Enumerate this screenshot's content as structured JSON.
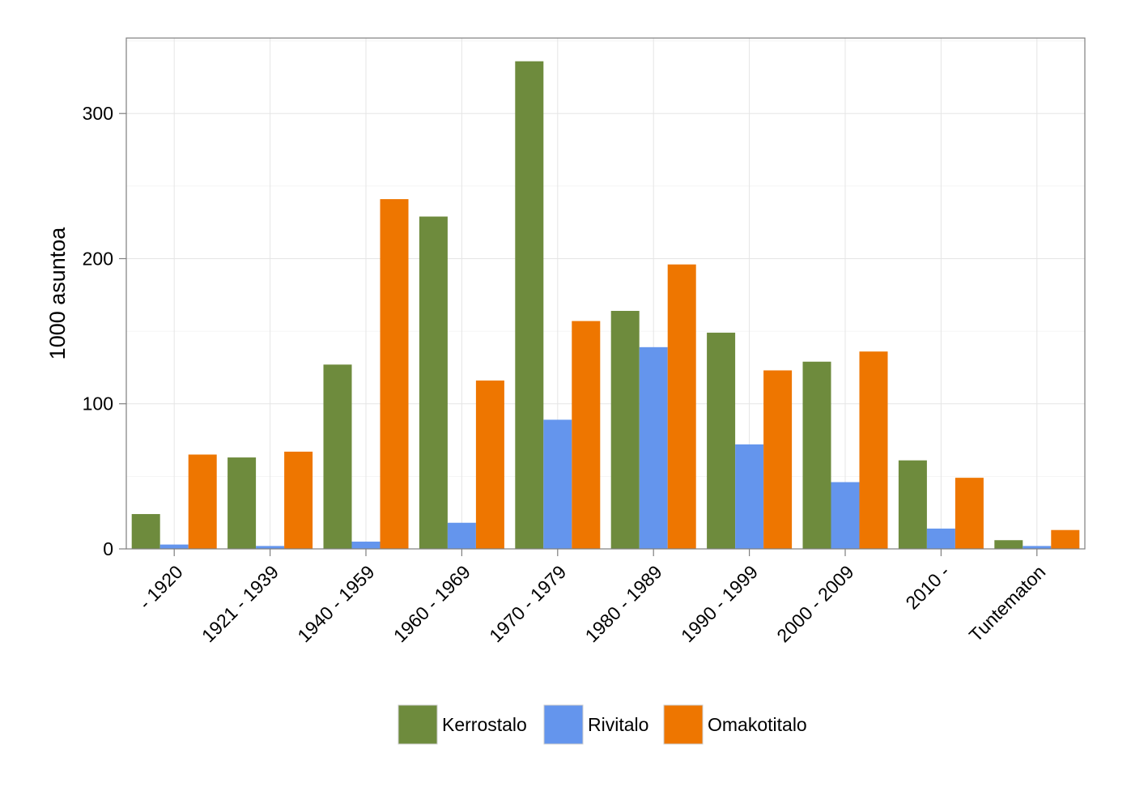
{
  "chart_data": {
    "type": "bar",
    "title": "",
    "xlabel": "",
    "ylabel": "1000 asuntoa",
    "ylim": [
      0,
      352
    ],
    "yticks": [
      0,
      100,
      200,
      300
    ],
    "grid": true,
    "legend_position": "bottom",
    "categories": [
      "- 1920",
      "1921 - 1939",
      "1940 - 1959",
      "1960 - 1969",
      "1970 - 1979",
      "1980 - 1989",
      "1990 - 1999",
      "2000 - 2009",
      "2010 -",
      "Tuntematon"
    ],
    "series": [
      {
        "name": "Kerrostalo",
        "color": "#6e8b3d",
        "values": [
          24,
          63,
          127,
          229,
          336,
          164,
          149,
          129,
          61,
          6
        ]
      },
      {
        "name": "Rivitalo",
        "color": "#6495ed",
        "values": [
          3,
          2,
          5,
          18,
          89,
          139,
          72,
          46,
          14,
          2
        ]
      },
      {
        "name": "Omakotitalo",
        "color": "#ee7600",
        "values": [
          65,
          67,
          241,
          116,
          157,
          196,
          123,
          136,
          49,
          13
        ]
      }
    ]
  }
}
